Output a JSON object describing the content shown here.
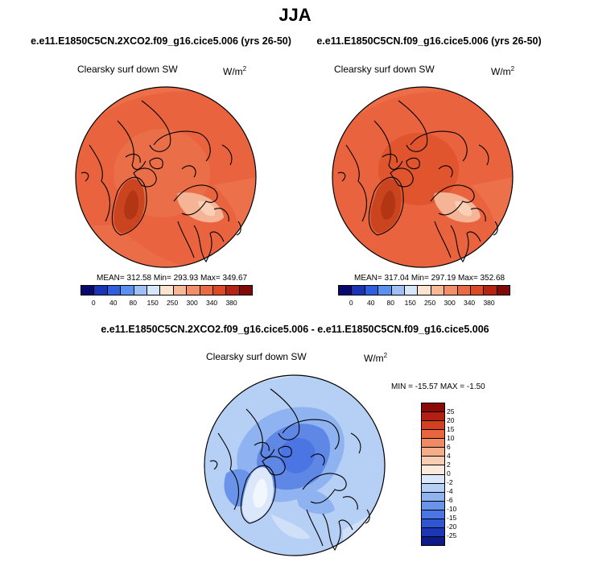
{
  "season": "JJA",
  "diff_title": "e.e11.E1850C5CN.2XCO2.f09_g16.cice5.006 - e.e11.E1850C5CN.f09_g16.cice5.006",
  "chart_data": [
    {
      "type": "heatmap",
      "projection": "north polar stereographic",
      "title": "e.e11.E1850C5CN.2XCO2.f09_g16.cice5.006 (yrs 26-50)",
      "variable": "Clearsky surf down SW",
      "units": "W/m",
      "units_sup": "2",
      "stats_text": "MEAN= 312.58   Min= 293.93   Max= 349.67",
      "mean": 312.58,
      "min": 293.93,
      "max": 349.67,
      "levels": [
        "0",
        "40",
        "80",
        "150",
        "250",
        "300",
        "340",
        "380"
      ],
      "colors": [
        "#08086e",
        "#1a34b4",
        "#2d5fe0",
        "#5b8ff0",
        "#9fc0f5",
        "#d6e6fb",
        "#fbe3d0",
        "#f7b995",
        "#f19068",
        "#ea6a43",
        "#dc4a25",
        "#b62313",
        "#7f0a08"
      ]
    },
    {
      "type": "heatmap",
      "projection": "north polar stereographic",
      "title": "e.e11.E1850C5CN.f09_g16.cice5.006 (yrs 26-50)",
      "variable": "Clearsky surf down SW",
      "units": "W/m",
      "units_sup": "2",
      "stats_text": "MEAN= 317.04   Min= 297.19   Max= 352.68",
      "mean": 317.04,
      "min": 297.19,
      "max": 352.68,
      "levels": [
        "0",
        "40",
        "80",
        "150",
        "250",
        "300",
        "340",
        "380"
      ],
      "colors": [
        "#08086e",
        "#1a34b4",
        "#2d5fe0",
        "#5b8ff0",
        "#9fc0f5",
        "#d6e6fb",
        "#fbe3d0",
        "#f7b995",
        "#f19068",
        "#ea6a43",
        "#dc4a25",
        "#b62313",
        "#7f0a08"
      ]
    },
    {
      "type": "heatmap",
      "projection": "north polar stereographic",
      "variable": "Clearsky surf down SW",
      "units": "W/m",
      "units_sup": "2",
      "stats_text": "MIN = -15.57  MAX =  -1.50",
      "min": -15.57,
      "max": -1.5,
      "levels": [
        "25",
        "20",
        "15",
        "10",
        "6",
        "4",
        "2",
        "0",
        "-2",
        "-4",
        "-6",
        "-10",
        "-15",
        "-20",
        "-25"
      ],
      "colors": [
        "#8b0a08",
        "#b31f14",
        "#d3401f",
        "#e8663e",
        "#f08a62",
        "#f5ad8a",
        "#f8cdb2",
        "#fbe9dc",
        "#dbe7fa",
        "#b6cff5",
        "#8fb2f0",
        "#6a94ea",
        "#4a75e2",
        "#2f55d2",
        "#1d37b4",
        "#0d1a8a"
      ]
    }
  ]
}
